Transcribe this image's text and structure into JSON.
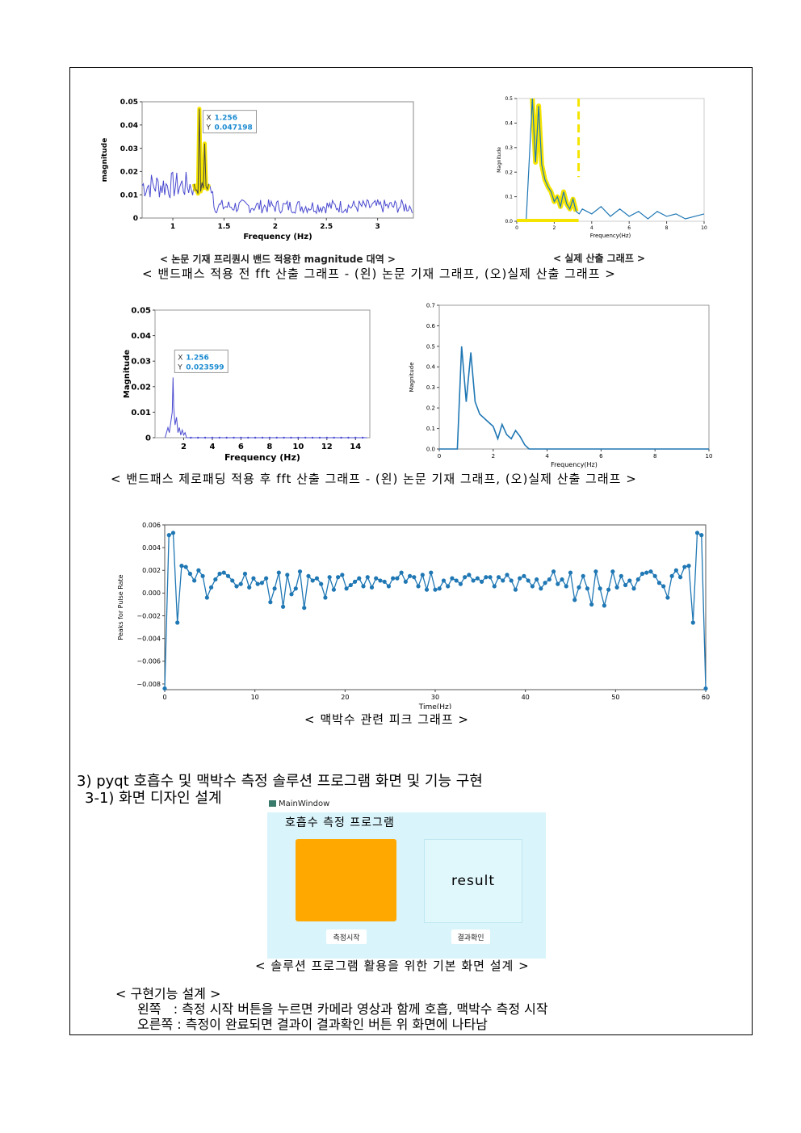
{
  "charts": {
    "paper_before": {
      "ylabel": "magnitude",
      "xlabel": "Frequency (Hz)",
      "yticks": [
        "0",
        "0.01",
        "0.02",
        "0.03",
        "0.04",
        "0.05"
      ],
      "xticks": [
        "1",
        "1.5",
        "2",
        "2.5",
        "3"
      ],
      "tooltip_x": "1.256",
      "tooltip_y": "0.047198",
      "caption": "< 논문 기재 프리퀀시 밴드 적용한 magnitude 대역 >"
    },
    "real_before": {
      "ylabel": "Magnitude",
      "xlabel": "Frequency(Hz)",
      "yticks": [
        "0.0",
        "0.1",
        "0.2",
        "0.3",
        "0.4",
        "0.5"
      ],
      "xticks": [
        "0",
        "2",
        "4",
        "6",
        "8",
        "10"
      ],
      "caption": "< 실제 산출 그래프 >"
    },
    "paper_after": {
      "ylabel": "Magnitude",
      "xlabel": "Frequency (Hz)",
      "yticks": [
        "0",
        "0.01",
        "0.02",
        "0.03",
        "0.04",
        "0.05"
      ],
      "xticks": [
        "2",
        "4",
        "6",
        "8",
        "10",
        "12",
        "14"
      ],
      "tooltip_x": "1.256",
      "tooltip_y": "0.023599"
    },
    "real_after": {
      "ylabel": "Magnitude",
      "xlabel": "Frequency(Hz)",
      "yticks": [
        "0.0",
        "0.1",
        "0.2",
        "0.3",
        "0.4",
        "0.5",
        "0.6",
        "0.7"
      ],
      "xticks": [
        "0",
        "2",
        "4",
        "6",
        "8",
        "10"
      ]
    },
    "pulse": {
      "ylabel": "Peaks for Pulse Rate",
      "xlabel": "Time(Hz)",
      "yticks": [
        "−0.008",
        "−0.006",
        "−0.004",
        "−0.002",
        "0.000",
        "0.002",
        "0.004",
        "0.006"
      ],
      "xticks": [
        "0",
        "10",
        "20",
        "30",
        "40",
        "50",
        "60"
      ]
    }
  },
  "chart_data": [
    {
      "type": "line",
      "ylabel": "magnitude",
      "xlabel": "Frequency (Hz)",
      "xlim": [
        0.7,
        3.35
      ],
      "ylim": [
        0,
        0.05
      ],
      "annotation": {
        "x": 1.256,
        "y": 0.047198
      }
    },
    {
      "type": "line",
      "ylabel": "Magnitude",
      "xlabel": "Frequency(Hz)",
      "xlim": [
        0,
        10
      ],
      "ylim": [
        0,
        0.5
      ],
      "x": [
        0.0,
        0.5,
        0.83,
        1.0,
        1.17,
        1.33,
        1.5,
        1.67,
        1.83,
        2.0,
        2.17,
        2.33,
        2.5,
        2.67,
        2.83,
        3.0,
        3.17,
        3.33,
        3.5,
        4.0,
        4.5,
        5.0,
        5.5,
        6.0,
        6.5,
        7.0,
        7.5,
        8.0,
        8.5,
        9.0,
        9.5,
        10.0
      ],
      "y": [
        0.0,
        0.0,
        0.5,
        0.24,
        0.47,
        0.23,
        0.17,
        0.14,
        0.12,
        0.08,
        0.1,
        0.06,
        0.12,
        0.07,
        0.05,
        0.09,
        0.04,
        0.03,
        0.05,
        0.03,
        0.06,
        0.02,
        0.05,
        0.02,
        0.04,
        0.01,
        0.04,
        0.02,
        0.03,
        0.01,
        0.02,
        0.03
      ]
    },
    {
      "type": "line",
      "ylabel": "Magnitude",
      "xlabel": "Frequency (Hz)",
      "xlim": [
        0,
        15
      ],
      "ylim": [
        0,
        0.05
      ],
      "annotation": {
        "x": 1.256,
        "y": 0.023599
      }
    },
    {
      "type": "line",
      "ylabel": "Magnitude",
      "xlabel": "Frequency(Hz)",
      "xlim": [
        0,
        10
      ],
      "ylim": [
        0,
        0.7
      ],
      "x": [
        0,
        0.67,
        0.83,
        1.0,
        1.17,
        1.33,
        1.5,
        1.83,
        2.0,
        2.17,
        2.33,
        2.5,
        2.67,
        2.83,
        3.0,
        3.17,
        3.33,
        3.5,
        10
      ],
      "y": [
        0,
        0,
        0.5,
        0.23,
        0.47,
        0.23,
        0.17,
        0.13,
        0.11,
        0.05,
        0.12,
        0.07,
        0.05,
        0.09,
        0.06,
        0.02,
        0,
        0,
        0
      ]
    },
    {
      "type": "line",
      "ylabel": "Peaks for Pulse Rate",
      "xlabel": "Time(Hz)",
      "xlim": [
        0,
        60
      ],
      "ylim": [
        -0.0085,
        0.006
      ],
      "y": [
        -0.0084,
        0.0051,
        0.0053,
        -0.0026,
        0.0024,
        0.0023,
        0.0017,
        0.0011,
        0.002,
        0.0015,
        -0.0004,
        0.0005,
        0.0012,
        0.0017,
        0.0018,
        0.0015,
        0.0011,
        0.0006,
        0.0008,
        0.0017,
        0.0005,
        0.0013,
        0.0008,
        0.0009,
        0.0013,
        -0.0008,
        0.0004,
        0.0018,
        -0.0012,
        0.0016,
        -0.0001,
        0.0004,
        0.0019,
        -0.0013,
        0.0015,
        0.0011,
        0.0013,
        0.0008,
        -0.0004,
        0.0014,
        0.0003,
        0.0014,
        0.0016,
        0.0004,
        0.0007,
        0.001,
        0.0013,
        0.0006,
        0.0014,
        0.0005,
        0.0013,
        0.0011,
        0.001,
        0.0006,
        0.0013,
        0.0013,
        0.0018,
        0.001,
        0.0015,
        0.0014,
        0.0006,
        0.0016,
        0.0003,
        0.0018,
        0.0003,
        0.0004,
        0.0011,
        0.0006,
        0.0013,
        0.0011,
        0.0008,
        0.0014,
        0.0016,
        0.0011,
        0.0013,
        0.001,
        0.0014,
        0.0014,
        0.0006,
        0.0014,
        0.0011,
        0.0016,
        0.0011,
        0.0003,
        0.0013,
        0.0015,
        0.0011,
        0.0006,
        0.0012,
        0.0004,
        0.0009,
        0.0012,
        0.0019,
        0.0008,
        0.0012,
        0.0006,
        0.0018,
        -0.0006,
        0.0005,
        0.0015,
        0.0004,
        -0.001,
        0.0019,
        0.0004,
        -0.0011,
        0.0003,
        0.0019,
        0.0005,
        0.0015,
        0.0007,
        0.0011,
        0.0004,
        0.0012,
        0.0017,
        0.0018,
        0.0019,
        0.0015,
        0.0009,
        0.0006,
        -0.0004,
        0.0015,
        0.002,
        0.0014,
        0.0023,
        0.0024,
        -0.0026,
        0.0053,
        0.0051,
        -0.0084
      ]
    }
  ],
  "captions": {
    "fft_before": "< 밴드패스 적용 전 fft 산출 그래프 - (왼) 논문 기재 그래프, (오)실제 산출 그래프 >",
    "fft_after": "< 밴드패스 제로패딩 적용 후 fft 산출 그래프 - (왼) 논문 기재 그래프, (오)실제 산출 그래프 >",
    "pulse": "< 맥박수 관련 피크 그래프 >",
    "ui": "< 솔루션 프로그램 활용을 위한 기본 화면 설계 >"
  },
  "section": {
    "heading": "3) pyqt 호흡수 및 맥박수 측정 솔루션 프로그램 화면 및 기능 구현",
    "subheading": "3-1) 화면 디자인 설계"
  },
  "ui_mock": {
    "window_title": "MainWindow",
    "app_title": "호흡수 측정 프로그램",
    "result_label": "result",
    "start_button": "측정시작",
    "check_button": "결과확인"
  },
  "design": {
    "title": "< 구현기능 설계 >",
    "line1": "왼쪽   : 측정 시작 버튼을 누르면 카메라 영상과 함께 호흡, 맥박수 측정 시작",
    "line2": "오른쪽 : 측정이 완료되면 결과이 결과확인 버튼 위 화면에 나타남"
  },
  "colors": {
    "matlab_blue": "#4a4ad0",
    "py_blue": "#1f77b4",
    "highlight": "#f5e400",
    "orange_box": "#ffa800",
    "ui_bg": "#d9f4fb"
  }
}
